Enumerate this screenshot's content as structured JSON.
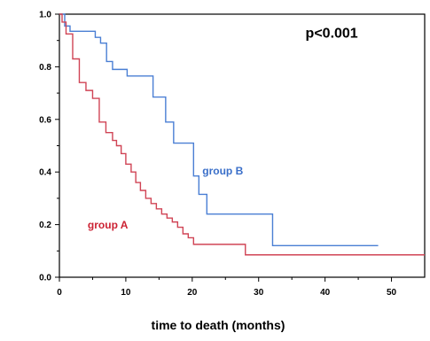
{
  "chart_data": {
    "type": "line",
    "xlabel": "time to death (months)",
    "ylabel": "",
    "xlim": [
      0,
      55
    ],
    "ylim": [
      0,
      1.0
    ],
    "x_ticks": [
      0,
      10,
      20,
      30,
      40,
      50
    ],
    "x_tick_labels": [
      "0",
      "10",
      "20",
      "30",
      "40",
      "50"
    ],
    "y_ticks": [
      0,
      0.2,
      0.4,
      0.6,
      0.8,
      1.0
    ],
    "y_tick_labels": [
      "0.0",
      "0.2",
      "0.4",
      "0.6",
      "0.8",
      "1.0"
    ],
    "annotations": [
      {
        "text": "p<0.001",
        "x": 41,
        "y": 0.91,
        "color": "#000000",
        "size": 16
      },
      {
        "text": "group B",
        "x": 24.6,
        "y": 0.39,
        "color": "#3a6fc9",
        "size": 12
      },
      {
        "text": "group A",
        "x": 7.3,
        "y": 0.185,
        "color": "#cc2233",
        "size": 12
      }
    ],
    "series": [
      {
        "name": "group B",
        "color": "#4a7fd4",
        "step": true,
        "x": [
          0,
          0.8,
          1.6,
          5.4,
          6.2,
          7.1,
          8.0,
          10.2,
          14.1,
          16.0,
          17.2,
          20.2,
          21.0,
          21.7,
          22.2,
          32.1,
          48
        ],
        "y": [
          1.0,
          0.955,
          0.935,
          0.912,
          0.89,
          0.82,
          0.79,
          0.765,
          0.685,
          0.59,
          0.51,
          0.385,
          0.315,
          0.315,
          0.24,
          0.12,
          0.12
        ]
      },
      {
        "name": "group A",
        "color": "#d04455",
        "step": true,
        "x": [
          0,
          0.4,
          1.0,
          2.0,
          3.0,
          4.0,
          5.0,
          6.0,
          7.0,
          8.0,
          8.6,
          9.3,
          10.0,
          10.8,
          11.5,
          12.2,
          13.0,
          13.8,
          14.6,
          15.4,
          16.2,
          17.0,
          17.8,
          18.6,
          19.4,
          20.2,
          28.0,
          55
        ],
        "y": [
          1.0,
          0.97,
          0.925,
          0.83,
          0.74,
          0.71,
          0.68,
          0.59,
          0.55,
          0.52,
          0.5,
          0.47,
          0.43,
          0.4,
          0.36,
          0.33,
          0.3,
          0.28,
          0.26,
          0.24,
          0.225,
          0.21,
          0.19,
          0.165,
          0.15,
          0.125,
          0.085,
          0.085
        ]
      }
    ]
  }
}
